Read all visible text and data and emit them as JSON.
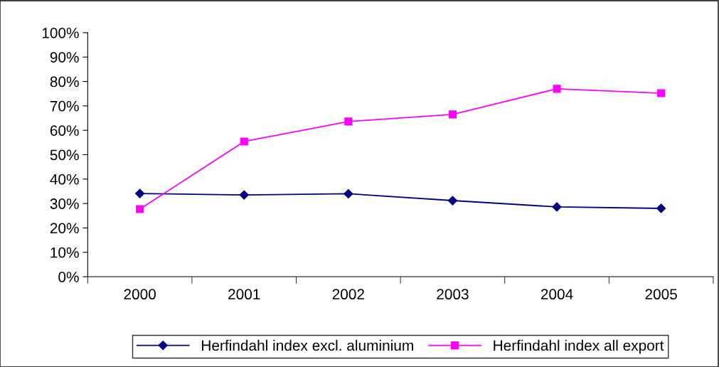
{
  "chart_data": {
    "type": "line",
    "categories": [
      "2000",
      "2001",
      "2002",
      "2003",
      "2004",
      "2005"
    ],
    "series": [
      {
        "name": "Herfindahl index excl. aluminium",
        "color": "#000080",
        "marker": "diamond",
        "values": [
          34.1,
          33.5,
          34.0,
          31.2,
          28.6,
          28.0
        ]
      },
      {
        "name": "Herfindahl index all export",
        "color": "#ff00ff",
        "marker": "square",
        "values": [
          27.7,
          55.4,
          63.6,
          66.5,
          77.0,
          75.2
        ]
      }
    ],
    "ylim": [
      0,
      100
    ],
    "yticks": [
      {
        "value": 0,
        "label": "0%"
      },
      {
        "value": 10,
        "label": "10%"
      },
      {
        "value": 20,
        "label": "20%"
      },
      {
        "value": 30,
        "label": "30%"
      },
      {
        "value": 40,
        "label": "40%"
      },
      {
        "value": 50,
        "label": "50%"
      },
      {
        "value": 60,
        "label": "60%"
      },
      {
        "value": 70,
        "label": "70%"
      },
      {
        "value": 80,
        "label": "80%"
      },
      {
        "value": 90,
        "label": "90%"
      },
      {
        "value": 100,
        "label": "100%"
      }
    ],
    "grid": false,
    "legend": "bottom",
    "line_style": "solid"
  }
}
